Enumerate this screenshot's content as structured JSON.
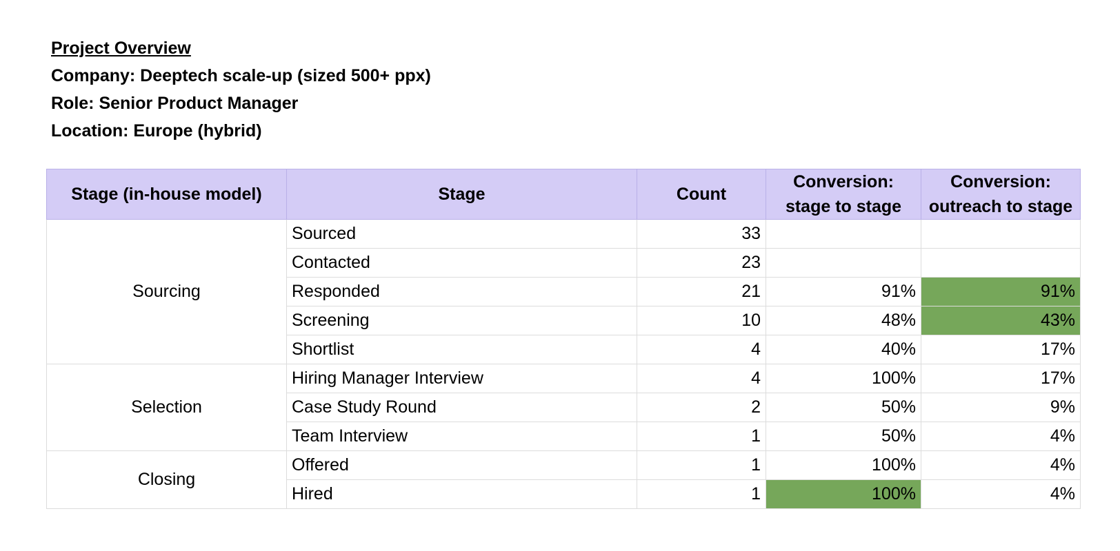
{
  "overview": {
    "title": "Project Overview",
    "company": "Company: Deeptech scale-up (sized 500+ ppx)",
    "role": "Role: Senior Product Manager",
    "location": "Location: Europe (hybrid)"
  },
  "table": {
    "headers": {
      "model_stage": "Stage (in-house model)",
      "stage": "Stage",
      "count": "Count",
      "conv_stage_l1": "Conversion:",
      "conv_stage_l2": "stage to stage",
      "conv_outreach_l1": "Conversion:",
      "conv_outreach_l2": "outreach to stage"
    },
    "groups": [
      "Sourcing",
      "Selection",
      "Closing"
    ],
    "rows": [
      {
        "stage": "Sourced",
        "count": "33",
        "stage_conv": "",
        "outreach_conv": ""
      },
      {
        "stage": "Contacted",
        "count": "23",
        "stage_conv": "",
        "outreach_conv": ""
      },
      {
        "stage": "Responded",
        "count": "21",
        "stage_conv": "91%",
        "outreach_conv": "91%"
      },
      {
        "stage": "Screening",
        "count": "10",
        "stage_conv": "48%",
        "outreach_conv": "43%"
      },
      {
        "stage": "Shortlist",
        "count": "4",
        "stage_conv": "40%",
        "outreach_conv": "17%"
      },
      {
        "stage": "Hiring Manager Interview",
        "count": "4",
        "stage_conv": "100%",
        "outreach_conv": "17%"
      },
      {
        "stage": "Case Study Round",
        "count": "2",
        "stage_conv": "50%",
        "outreach_conv": "9%"
      },
      {
        "stage": "Team Interview",
        "count": "1",
        "stage_conv": "50%",
        "outreach_conv": "4%"
      },
      {
        "stage": "Offered",
        "count": "1",
        "stage_conv": "100%",
        "outreach_conv": "4%"
      },
      {
        "stage": "Hired",
        "count": "1",
        "stage_conv": "100%",
        "outreach_conv": "4%"
      }
    ]
  },
  "colors": {
    "header_bg": "#d4ccf6",
    "highlight_green": "#76a75a",
    "group_separator": "#f1c27d"
  }
}
